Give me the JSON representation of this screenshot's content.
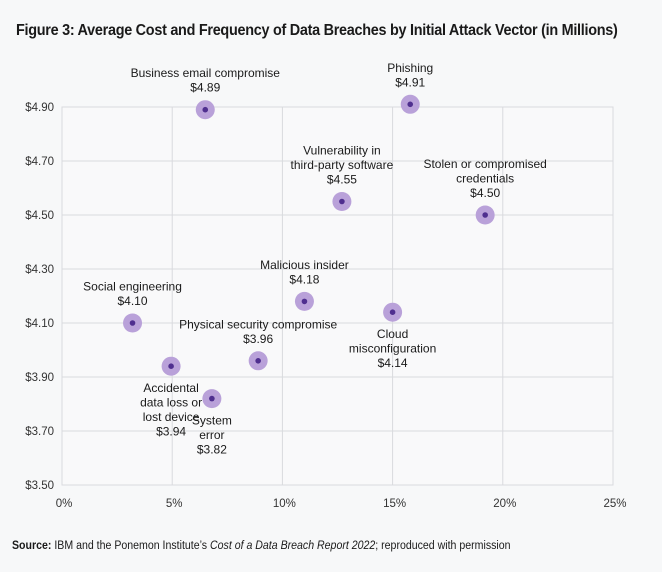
{
  "chart_data": {
    "type": "scatter",
    "title": "Figure 3: Average Cost and Frequency of Data Breaches by Initial Attack Vector (in Millions)",
    "xlabel": "",
    "ylabel": "",
    "xlim": [
      0,
      25
    ],
    "ylim": [
      3.5,
      4.9
    ],
    "x_ticks": [
      "0%",
      "5%",
      "10%",
      "15%",
      "20%",
      "25%"
    ],
    "y_ticks": [
      "$3.50",
      "$3.70",
      "$3.90",
      "$4.10",
      "$4.30",
      "$4.50",
      "$4.70",
      "$4.90"
    ],
    "grid": true,
    "points": [
      {
        "label": [
          "Business email compromise"
        ],
        "value_label": "$4.89",
        "x": 6.5,
        "y": 4.89,
        "label_pos": "above"
      },
      {
        "label": [
          "Phishing"
        ],
        "value_label": "$4.91",
        "x": 15.8,
        "y": 4.91,
        "label_pos": "above"
      },
      {
        "label": [
          "Vulnerability in",
          "third-party software"
        ],
        "value_label": "$4.55",
        "x": 12.7,
        "y": 4.55,
        "label_pos": "above"
      },
      {
        "label": [
          "Stolen or compromised",
          "credentials"
        ],
        "value_label": "$4.50",
        "x": 19.2,
        "y": 4.5,
        "label_pos": "above"
      },
      {
        "label": [
          "Malicious insider"
        ],
        "value_label": "$4.18",
        "x": 11.0,
        "y": 4.18,
        "label_pos": "above"
      },
      {
        "label": [
          "Cloud",
          "misconfiguration"
        ],
        "value_label": "$4.14",
        "x": 15.0,
        "y": 4.14,
        "label_pos": "below"
      },
      {
        "label": [
          "Social engineering"
        ],
        "value_label": "$4.10",
        "x": 3.2,
        "y": 4.1,
        "label_pos": "above"
      },
      {
        "label": [
          "Physical security compromise"
        ],
        "value_label": "$3.96",
        "x": 8.9,
        "y": 3.96,
        "label_pos": "above"
      },
      {
        "label": [
          "Accidental",
          "data loss or",
          "lost device"
        ],
        "value_label": "$3.94",
        "x": 4.95,
        "y": 3.94,
        "label_pos": "below"
      },
      {
        "label": [
          "System",
          "error"
        ],
        "value_label": "$3.82",
        "x": 6.8,
        "y": 3.82,
        "label_pos": "below"
      }
    ],
    "colors": {
      "marker_outer": "#b9a1d9",
      "marker_inner": "#4f2f8f",
      "grid": "#d9dade",
      "plot_bg": "#f9f9fa"
    }
  },
  "source": {
    "label": "Source:",
    "text_before": " IBM and the Ponemon Institute’s ",
    "italic": "Cost of a Data Breach Report 2022",
    "text_after": "; reproduced with permission"
  }
}
